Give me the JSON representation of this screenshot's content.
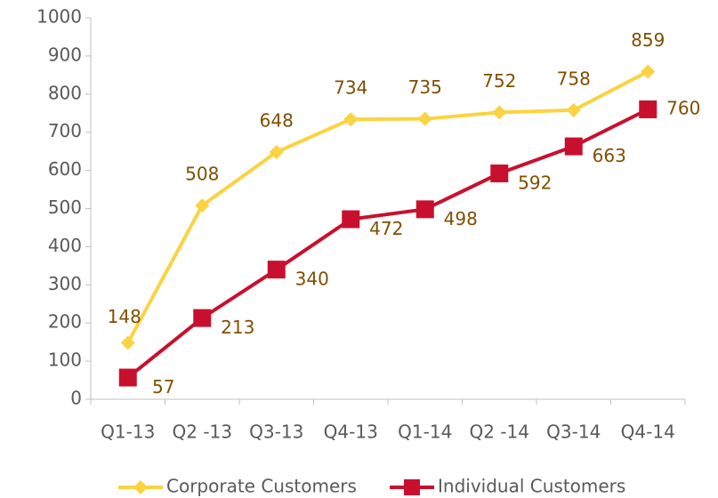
{
  "chart_data": {
    "type": "line",
    "categories": [
      "Q1-13",
      "Q2 -13",
      "Q3-13",
      "Q4-13",
      "Q1-14",
      "Q2 -14",
      "Q3-14",
      "Q4-14"
    ],
    "series": [
      {
        "name": "Corporate Customers",
        "color": "#fbd341",
        "marker": "diamond",
        "values": [
          148,
          508,
          648,
          734,
          735,
          752,
          758,
          859
        ]
      },
      {
        "name": "Individual Customers",
        "color": "#c8102e",
        "marker": "square",
        "values": [
          57,
          213,
          340,
          472,
          498,
          592,
          663,
          760
        ]
      }
    ],
    "ylim": [
      0,
      1000
    ],
    "yticks": [
      0,
      100,
      200,
      300,
      400,
      500,
      600,
      700,
      800,
      900,
      1000
    ],
    "grid": false,
    "legend": "bottom"
  }
}
